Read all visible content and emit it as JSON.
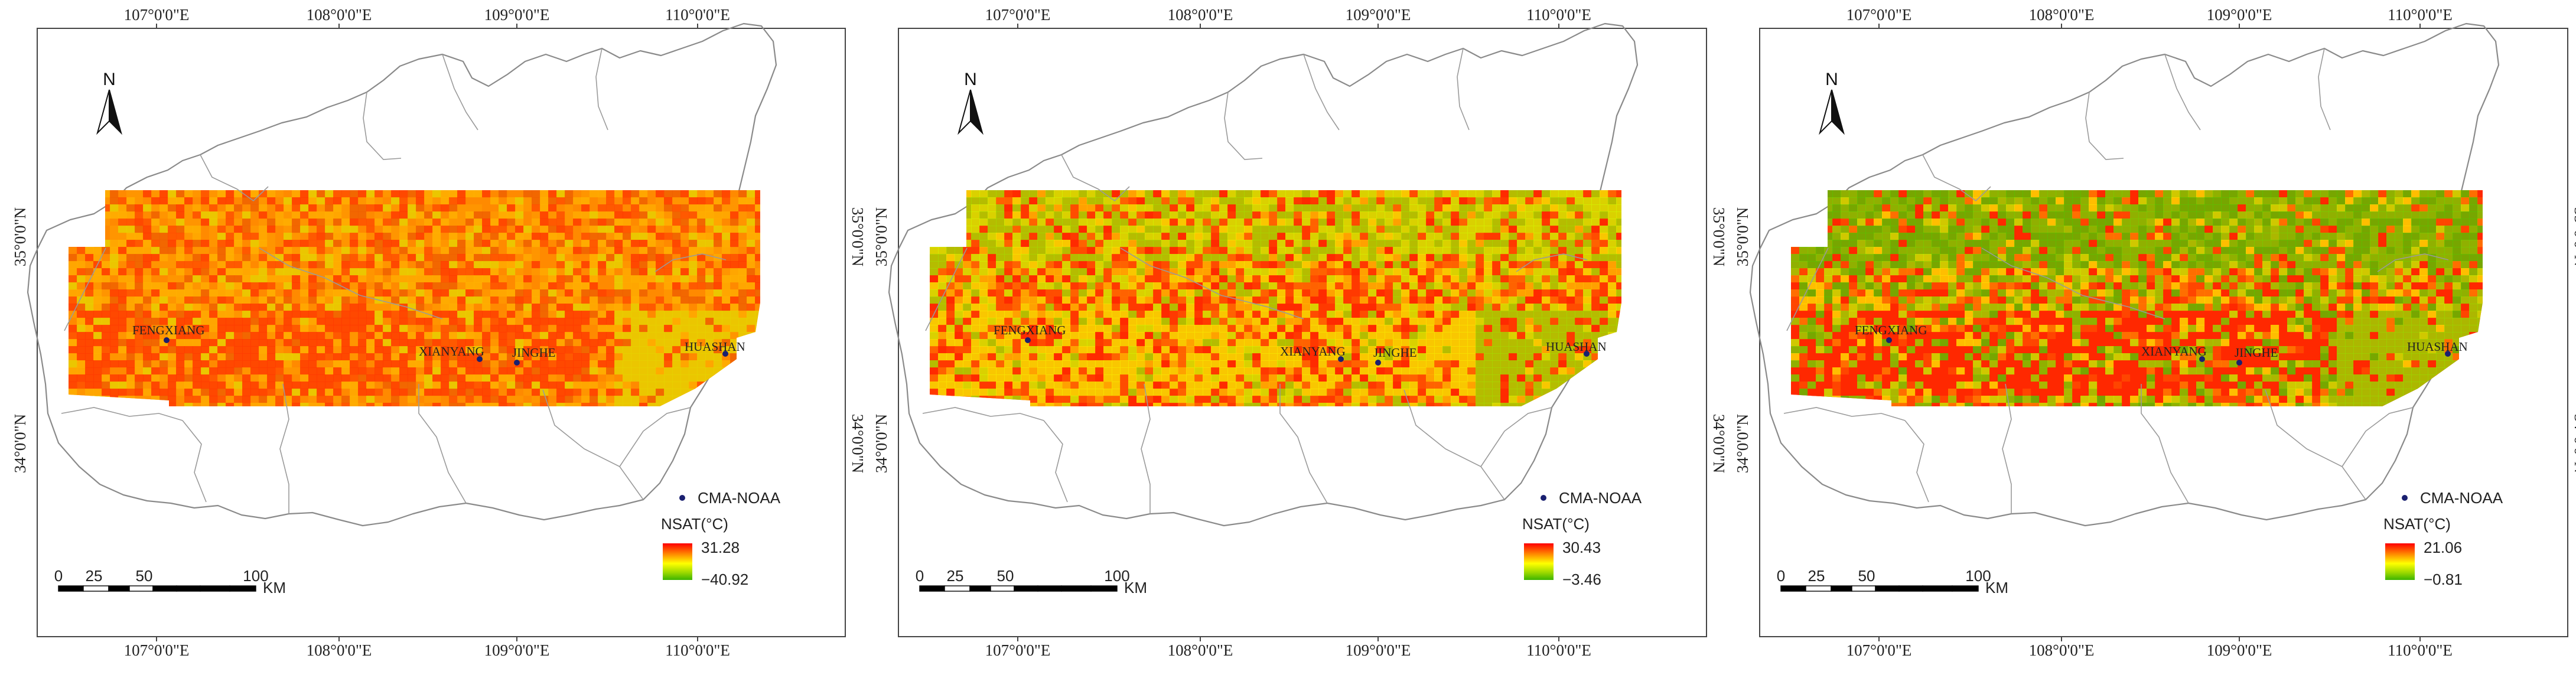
{
  "axes": {
    "lon_ticks": [
      "107°0'0\"E",
      "108°0'0\"E",
      "109°0'0\"E",
      "110°0'0\"E"
    ],
    "lat_ticks": [
      "35°0'0\"N",
      "34°0'0\"N"
    ]
  },
  "north_arrow": {
    "label": "N",
    "icon": "north-arrow-icon"
  },
  "stations": [
    {
      "name": "FENGXIANG"
    },
    {
      "name": "XIANYANG"
    },
    {
      "name": "JINGHE"
    },
    {
      "name": "HUASHAN"
    }
  ],
  "scale_bar": {
    "labels": [
      "0",
      "25",
      "50",
      "100"
    ],
    "unit": "KM"
  },
  "legend": {
    "point_label": "CMA-NOAA",
    "ramp_title": "NSAT(°C)",
    "ramp_colors": [
      "#ff0000",
      "#ff8c00",
      "#ffff00",
      "#9bd800",
      "#3cb400"
    ]
  },
  "panels": [
    {
      "max": "31.28",
      "min": "−40.92",
      "palette": [
        "#ff8a00",
        "#ffaa00",
        "#ff3c00",
        "#ff9600",
        "#e8d000",
        "#f06000",
        "#ffb000",
        "#ff5000"
      ]
    },
    {
      "max": "30.43",
      "min": "−3.46",
      "palette": [
        "#ff3a00",
        "#ff6a00",
        "#f8e000",
        "#a8d400",
        "#ff2800",
        "#ffb400",
        "#d4ec00",
        "#ff5000"
      ]
    },
    {
      "max": "21.06",
      "min": "−0.81",
      "palette": [
        "#ff2800",
        "#7cc800",
        "#ffd800",
        "#9ed000",
        "#ff4a00",
        "#c8e400",
        "#5fbc00",
        "#ff7a00"
      ]
    }
  ]
}
